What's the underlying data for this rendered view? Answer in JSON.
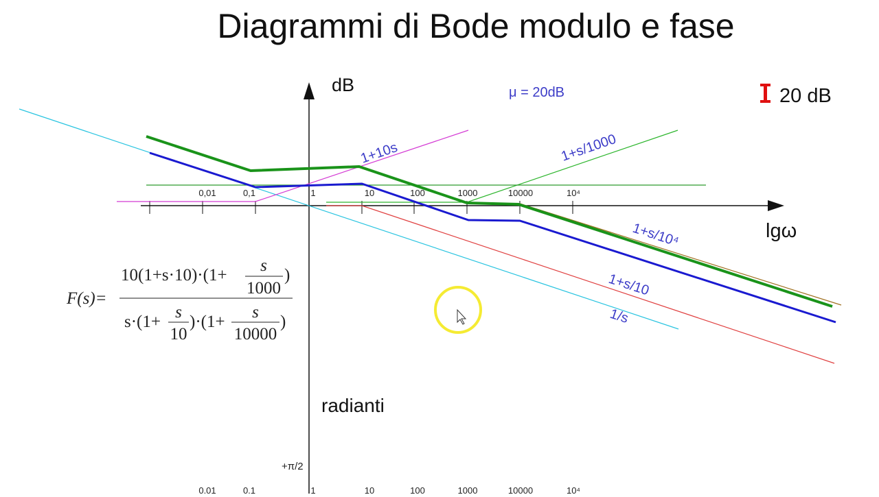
{
  "title": "Diagrammi di Bode modulo e fase",
  "axes": {
    "y_label": "dB",
    "x_label": "lgω",
    "phase_label": "radianti",
    "phase_tick": "+π/2",
    "x_ticks": [
      "0,01",
      "0,1",
      "1",
      "10",
      "100",
      "1000",
      "10000",
      "10⁴"
    ]
  },
  "annotations": {
    "gain": "μ = 20dB",
    "scale": "20 dB"
  },
  "line_labels": [
    "1+10s",
    "1+s/1000",
    "1+s/10⁴",
    "1+s/10",
    "1/s"
  ],
  "formula": {
    "lhs": "F(s)=",
    "numerator": {
      "lead": "10(1+s·10)·(1+",
      "frac_num": "s",
      "frac_den": "1000",
      "tail": ")"
    },
    "denominator": {
      "lead": "s·(1+",
      "frac1_num": "s",
      "frac1_den": "10",
      "mid": ")·(1+",
      "frac2_num": "s",
      "frac2_den": "10000",
      "tail": ")"
    }
  }
}
